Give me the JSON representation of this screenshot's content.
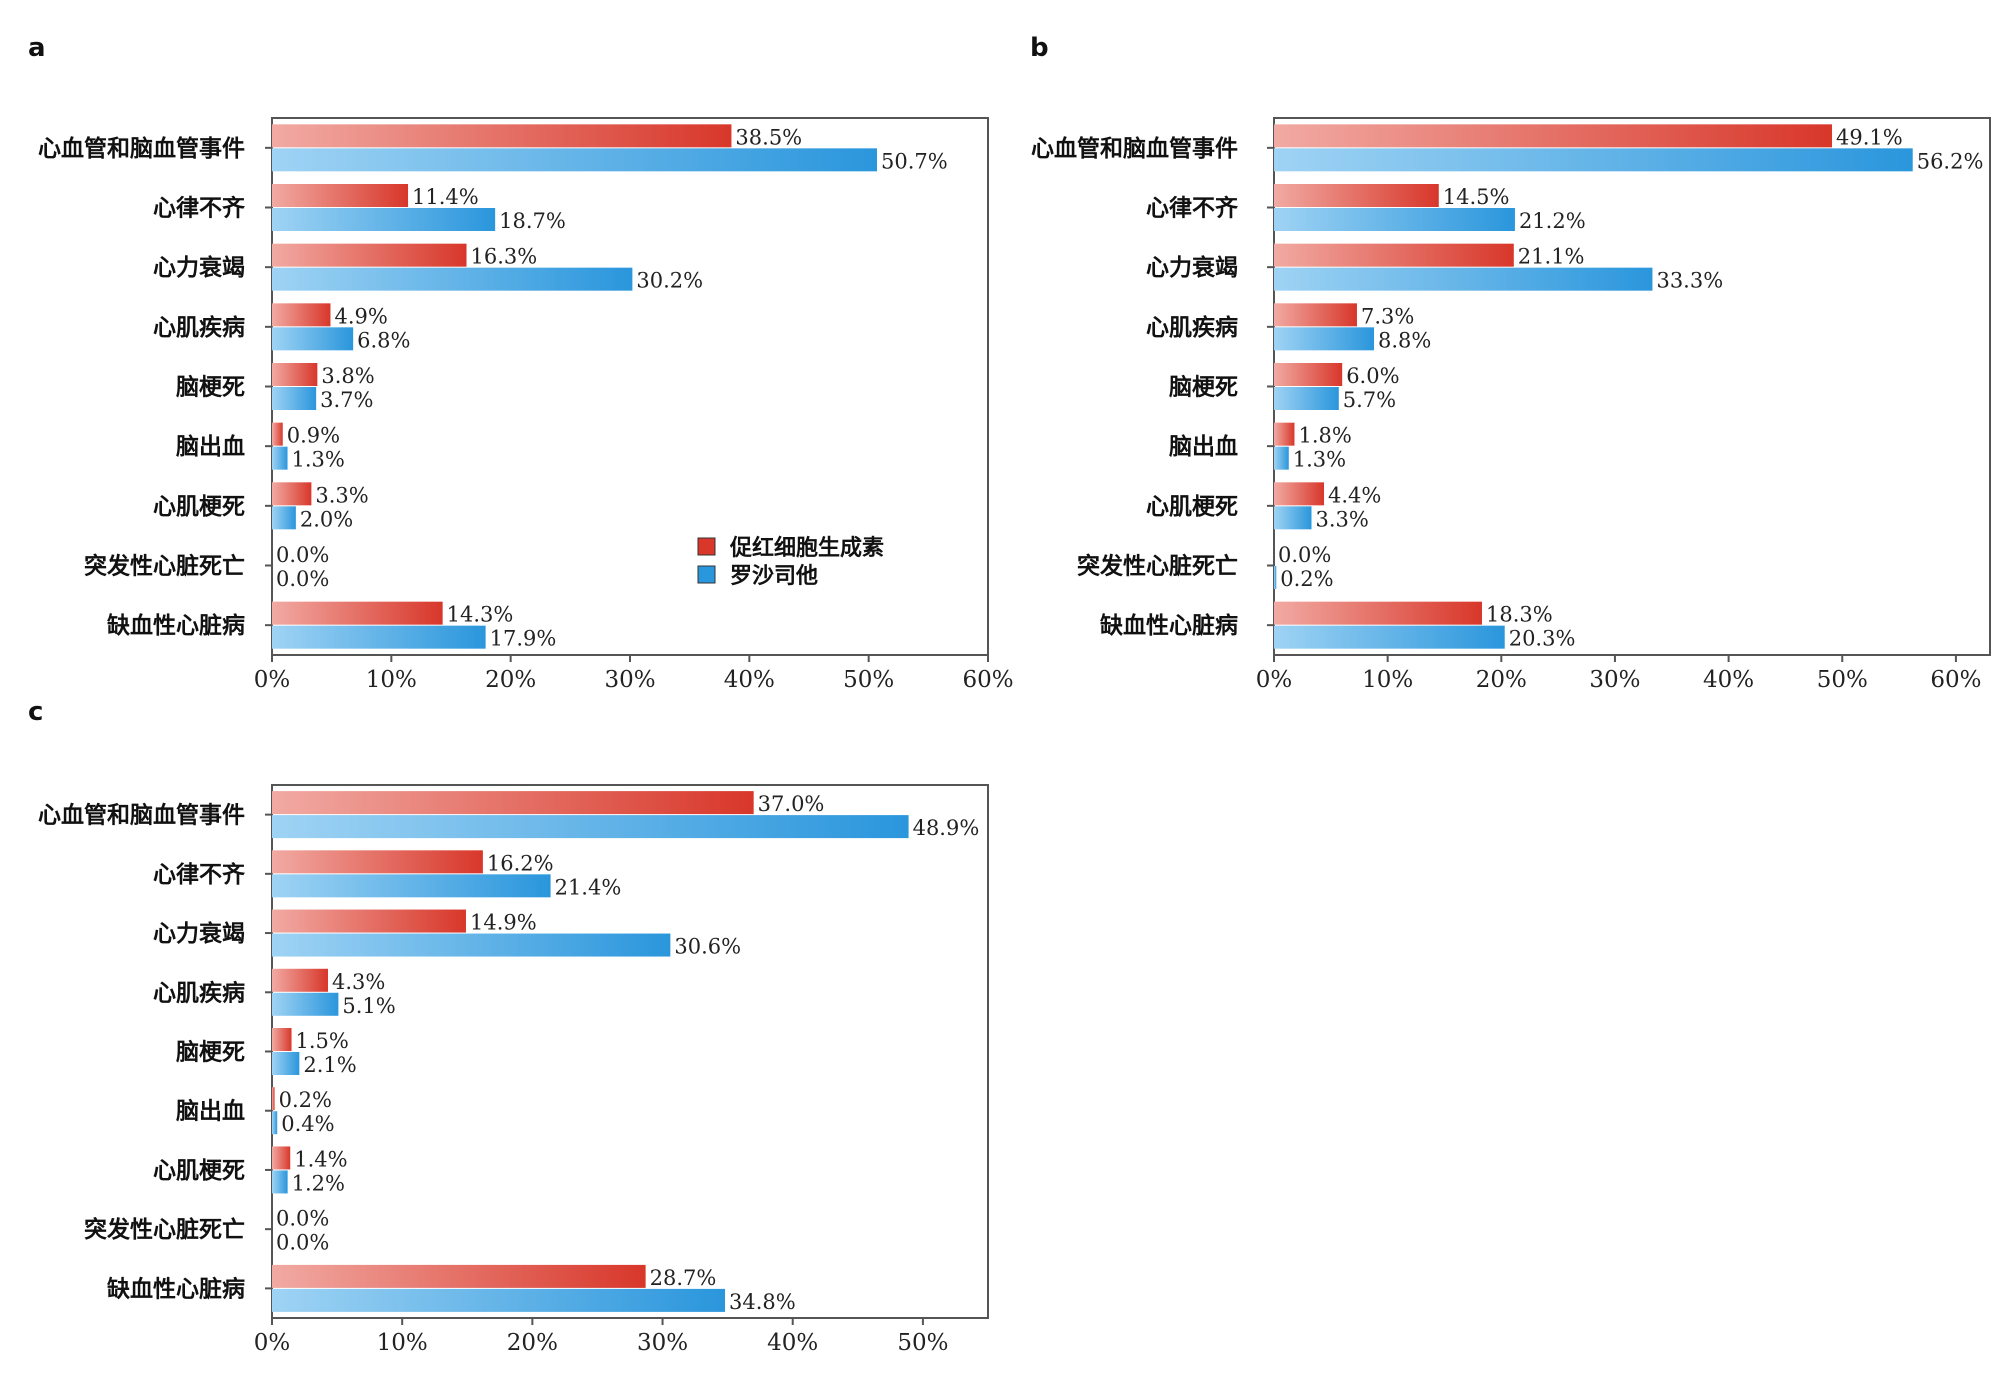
{
  "colors": {
    "series_a": "#d8372a",
    "series_b": "#2a96dc"
  },
  "legend": {
    "items": [
      {
        "label": "促红细胞生成素",
        "color": "#d8372a"
      },
      {
        "label": "罗沙司他",
        "color": "#2a96dc"
      }
    ]
  },
  "chart_data": [
    {
      "type": "bar",
      "orientation": "horizontal",
      "panel": "a",
      "categories": [
        "心血管和脑血管事件",
        "心律不齐",
        "心力衰竭",
        "心肌疾病",
        "脑梗死",
        "脑出血",
        "心肌梗死",
        "突发性心脏死亡",
        "缺血性心脏病"
      ],
      "series": [
        {
          "name": "促红细胞生成素",
          "values": [
            38.5,
            11.4,
            16.3,
            4.9,
            3.8,
            0.9,
            3.3,
            0.0,
            14.3
          ],
          "labels": [
            "38.5%",
            "11.4%",
            "16.3%",
            "4.9%",
            "3.8%",
            "0.9%",
            "3.3%",
            "0.0%",
            "14.3%"
          ]
        },
        {
          "name": "罗沙司他",
          "values": [
            50.7,
            18.7,
            30.2,
            6.8,
            3.7,
            1.3,
            2.0,
            0.0,
            17.9
          ],
          "labels": [
            "50.7%",
            "18.7%",
            "30.2%",
            "6.8%",
            "3.7%",
            "1.3%",
            "2.0%",
            "0.0%",
            "17.9%"
          ]
        }
      ],
      "xlim": [
        0,
        60
      ],
      "xticks": [
        "0%",
        "10%",
        "20%",
        "30%",
        "40%",
        "50%",
        "60%"
      ],
      "legend": "inside-right"
    },
    {
      "type": "bar",
      "orientation": "horizontal",
      "panel": "b",
      "categories": [
        "心血管和脑血管事件",
        "心律不齐",
        "心力衰竭",
        "心肌疾病",
        "脑梗死",
        "脑出血",
        "心肌梗死",
        "突发性心脏死亡",
        "缺血性心脏病"
      ],
      "series": [
        {
          "name": "促红细胞生成素",
          "values": [
            49.1,
            14.5,
            21.1,
            7.3,
            6.0,
            1.8,
            4.4,
            0.0,
            18.3
          ],
          "labels": [
            "49.1%",
            "14.5%",
            "21.1%",
            "7.3%",
            "6.0%",
            "1.8%",
            "4.4%",
            "0.0%",
            "18.3%"
          ]
        },
        {
          "name": "罗沙司他",
          "values": [
            56.2,
            21.2,
            33.3,
            8.8,
            5.7,
            1.3,
            3.3,
            0.2,
            20.3
          ],
          "labels": [
            "56.2%",
            "21.2%",
            "33.3%",
            "8.8%",
            "5.7%",
            "1.3%",
            "3.3%",
            "0.2%",
            "20.3%"
          ]
        }
      ],
      "xlim": [
        0,
        63
      ],
      "xticks": [
        "0%",
        "10%",
        "20%",
        "30%",
        "40%",
        "50%",
        "60%"
      ]
    },
    {
      "type": "bar",
      "orientation": "horizontal",
      "panel": "c",
      "categories": [
        "心血管和脑血管事件",
        "心律不齐",
        "心力衰竭",
        "心肌疾病",
        "脑梗死",
        "脑出血",
        "心肌梗死",
        "突发性心脏死亡",
        "缺血性心脏病"
      ],
      "series": [
        {
          "name": "促红细胞生成素",
          "values": [
            37.0,
            16.2,
            14.9,
            4.3,
            1.5,
            0.2,
            1.4,
            0.0,
            28.7
          ],
          "labels": [
            "37.0%",
            "16.2%",
            "14.9%",
            "4.3%",
            "1.5%",
            "0.2%",
            "1.4%",
            "0.0%",
            "28.7%"
          ]
        },
        {
          "name": "罗沙司他",
          "values": [
            48.9,
            21.4,
            30.6,
            5.1,
            2.1,
            0.4,
            1.2,
            0.0,
            34.8
          ],
          "labels": [
            "48.9%",
            "21.4%",
            "30.6%",
            "5.1%",
            "2.1%",
            "0.4%",
            "1.2%",
            "0.0%",
            "34.8%"
          ]
        }
      ],
      "xlim": [
        0,
        55
      ],
      "xticks": [
        "0%",
        "10%",
        "20%",
        "30%",
        "40%",
        "50%"
      ]
    }
  ]
}
